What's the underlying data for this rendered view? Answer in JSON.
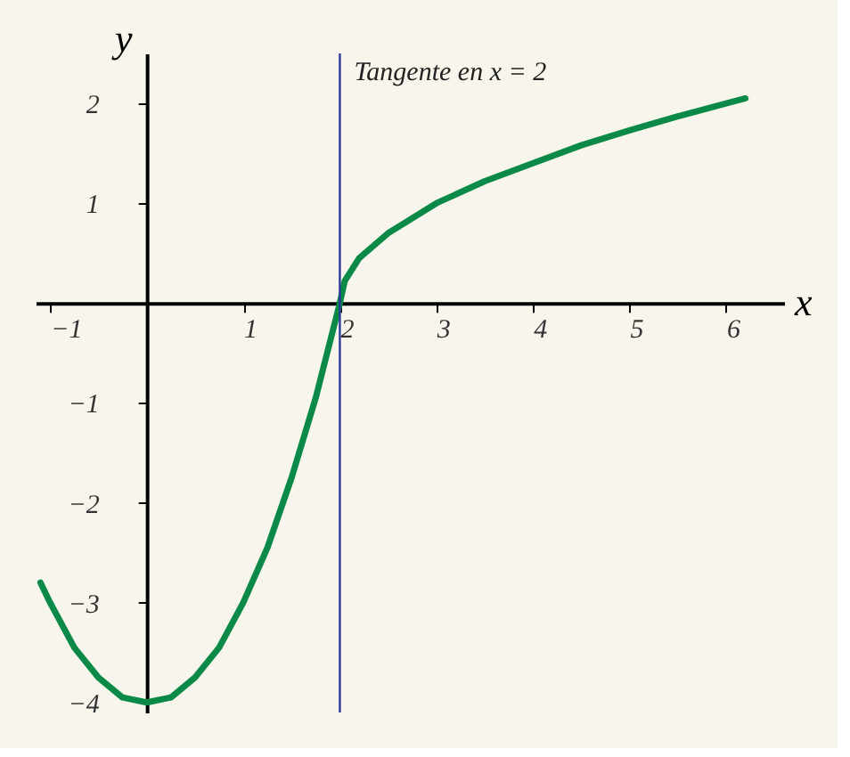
{
  "chart_data": {
    "type": "line",
    "xlabel": "x",
    "ylabel": "y",
    "x": [
      -1.1,
      -1,
      -0.75,
      -0.5,
      -0.25,
      0,
      0.25,
      0.5,
      0.75,
      1,
      1.25,
      1.5,
      1.75,
      2,
      2.05,
      2.2,
      2.5,
      3,
      3.5,
      4,
      4.5,
      5,
      5.5,
      6,
      6.2
    ],
    "series": [
      {
        "color": "#0b8a47",
        "values": [
          -2.8,
          -3,
          -3.45,
          -3.75,
          -3.95,
          -4,
          -3.95,
          -3.75,
          -3.45,
          -3,
          -2.45,
          -1.75,
          -0.95,
          0,
          0.22,
          0.45,
          0.7,
          1,
          1.22,
          1.4,
          1.58,
          1.73,
          1.87,
          2,
          2.05
        ]
      }
    ],
    "xlim": [
      -1.15,
      6.6
    ],
    "ylim": [
      -4.1,
      2.5
    ],
    "xticks": [
      -1,
      1,
      2,
      3,
      4,
      5,
      6
    ],
    "yticks": [
      -4,
      -3,
      -2,
      -1,
      1,
      2
    ],
    "ref_lines": [
      {
        "axis": "x",
        "value": 2,
        "label": "Tangente en x = 2",
        "color": "#2b3a9a"
      }
    ],
    "grid": false,
    "marker": "none",
    "line_style": "solid"
  }
}
